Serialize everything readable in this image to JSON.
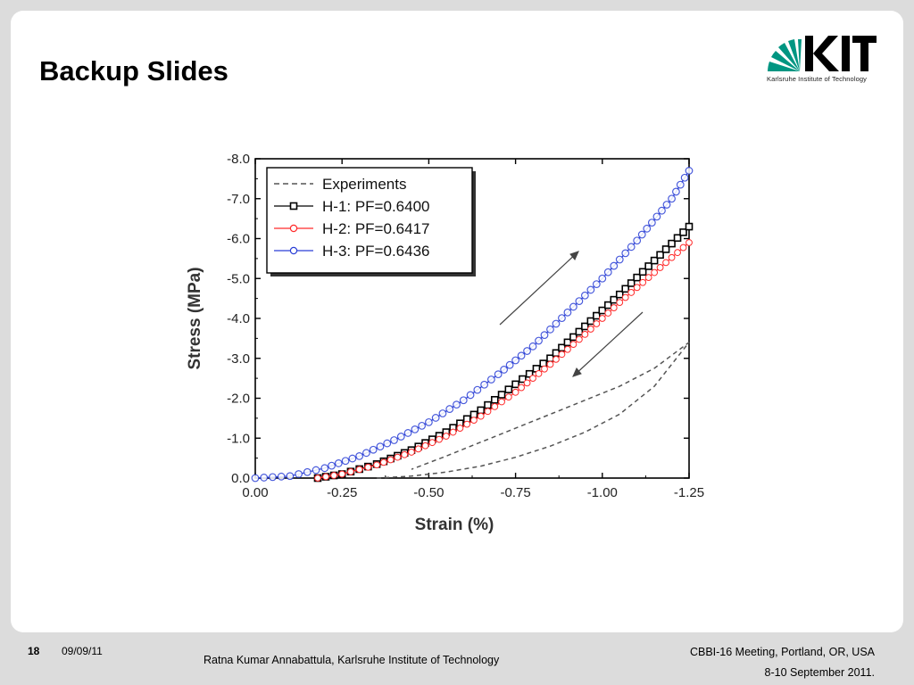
{
  "slide": {
    "title": "Backup Slides",
    "logo_text": "KIT",
    "logo_subtitle": "Karlsruhe Institute of Technology"
  },
  "footer": {
    "page_number": "18",
    "date": "09/09/11",
    "author": "Ratna Kumar Annabattula, Karlsruhe Institute of Technology",
    "event": "CBBI-16 Meeting, Portland, OR, USA",
    "event_dates": "8-10 September 2011."
  },
  "colors": {
    "accent_kit_green": "#009682",
    "h1": "#000000",
    "h2": "#ff2a2a",
    "h3": "#2a3fd6",
    "experiments": "#555555"
  },
  "chart_data": {
    "type": "line",
    "xlabel": "Strain (%)",
    "ylabel": "Stress (MPa)",
    "xlim": [
      0.0,
      -1.25
    ],
    "ylim": [
      0.0,
      -8.0
    ],
    "x_ticks": [
      "0.00",
      "-0.25",
      "-0.50",
      "-0.75",
      "-1.00",
      "-1.25"
    ],
    "x_tick_values": [
      0.0,
      -0.25,
      -0.5,
      -0.75,
      -1.0,
      -1.25
    ],
    "y_ticks": [
      "0.0",
      "-1.0",
      "-2.0",
      "-3.0",
      "-4.0",
      "-5.0",
      "-6.0",
      "-7.0",
      "-8.0"
    ],
    "y_tick_values": [
      0.0,
      -1.0,
      -2.0,
      -3.0,
      -4.0,
      -5.0,
      -6.0,
      -7.0,
      -8.0
    ],
    "legend_position": "top-left",
    "series": [
      {
        "name": "Experiments",
        "style": "dashed",
        "color": "#555555",
        "x": [
          -0.35,
          -0.45,
          -0.55,
          -0.65,
          -0.75,
          -0.85,
          -0.95,
          -1.05,
          -1.15,
          -1.25,
          -1.15,
          -1.05,
          -0.95,
          -0.85,
          -0.75,
          -0.65,
          -0.55,
          -0.45
        ],
        "y": [
          0.0,
          -0.05,
          -0.15,
          -0.3,
          -0.52,
          -0.8,
          -1.15,
          -1.6,
          -2.3,
          -3.4,
          -2.75,
          -2.3,
          -1.95,
          -1.6,
          -1.25,
          -0.9,
          -0.55,
          -0.22
        ]
      },
      {
        "name": "H-1: PF=0.6400",
        "style": "square-markers",
        "color": "#000000",
        "x": [
          -0.18,
          -0.25,
          -0.35,
          -0.45,
          -0.55,
          -0.65,
          -0.75,
          -0.85,
          -0.95,
          -1.05,
          -1.15,
          -1.25
        ],
        "y": [
          0.0,
          -0.1,
          -0.35,
          -0.7,
          -1.15,
          -1.7,
          -2.35,
          -3.0,
          -3.8,
          -4.6,
          -5.45,
          -6.3
        ]
      },
      {
        "name": "H-2: PF=0.6417",
        "style": "circle-markers",
        "color": "#ff2a2a",
        "x": [
          -0.18,
          -0.25,
          -0.35,
          -0.45,
          -0.55,
          -0.65,
          -0.75,
          -0.85,
          -0.95,
          -1.05,
          -1.15,
          -1.25
        ],
        "y": [
          0.0,
          -0.1,
          -0.33,
          -0.65,
          -1.05,
          -1.55,
          -2.15,
          -2.85,
          -3.6,
          -4.4,
          -5.15,
          -5.9
        ]
      },
      {
        "name": "H-3: PF=0.6436",
        "style": "diamond-markers",
        "color": "#2a3fd6",
        "x": [
          0.0,
          -0.1,
          -0.2,
          -0.3,
          -0.4,
          -0.5,
          -0.6,
          -0.7,
          -0.8,
          -0.9,
          -1.0,
          -1.1,
          -1.2,
          -1.25
        ],
        "y": [
          0.0,
          -0.05,
          -0.25,
          -0.55,
          -0.95,
          -1.4,
          -1.95,
          -2.6,
          -3.3,
          -4.15,
          -5.0,
          -5.95,
          -7.0,
          -7.7
        ]
      }
    ]
  }
}
